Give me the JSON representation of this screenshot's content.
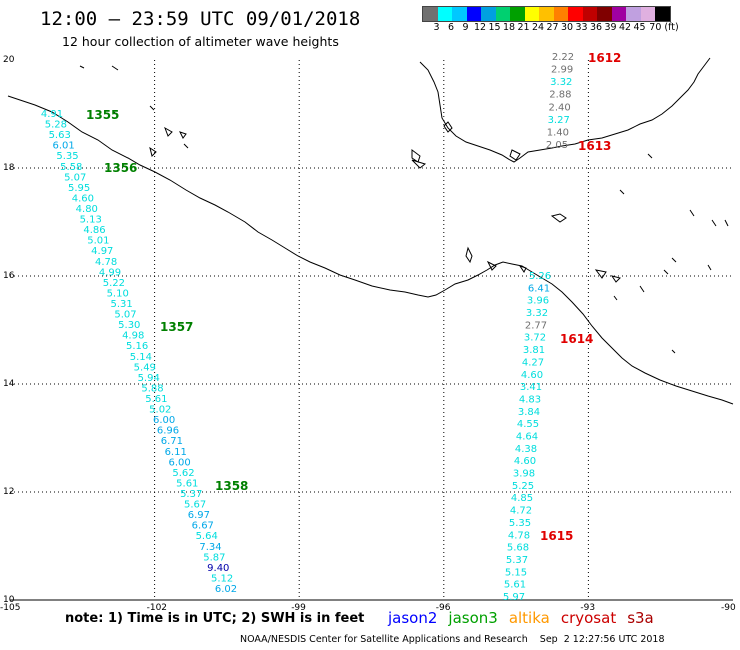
{
  "title": "12:00 – 23:59 UTC 09/01/2018",
  "subtitle": "12 hour collection of altimeter wave heights",
  "colorbar": {
    "colors": [
      "#707070",
      "#00ffff",
      "#00c8ff",
      "#0000ff",
      "#00a0e0",
      "#00d070",
      "#00a000",
      "#ffff00",
      "#ffc000",
      "#ff8000",
      "#ff0000",
      "#c00000",
      "#800000",
      "#a000a0",
      "#c0a0e0",
      "#e0b0e0",
      "#000000"
    ],
    "labels": [
      "3",
      "6",
      "9",
      "12",
      "15",
      "18",
      "21",
      "24",
      "27",
      "30",
      "33",
      "36",
      "39",
      "42",
      "45",
      "70 (ft)"
    ]
  },
  "map": {
    "lat_labels": [
      "20",
      "18",
      "16",
      "14",
      "12",
      "10"
    ],
    "lon_labels": [
      "-105",
      "-102",
      "-99",
      "-96",
      "-93",
      "-90"
    ],
    "tracks": [
      {
        "label": "jason3-west",
        "values": [
          "4.91",
          "5.28",
          "5.63",
          "6.01",
          "5.35",
          "5.58",
          "5.07",
          "5.95",
          "4.60",
          "4.80",
          "5.13",
          "4.86",
          "5.01",
          "4.97",
          "4.78",
          "4.99",
          "5.22",
          "5.10",
          "5.31",
          "5.07",
          "5.30",
          "4.98",
          "5.16",
          "5.14",
          "5.49",
          "5.94",
          "5.88",
          "5.61",
          "5.02",
          "6.00",
          "6.96",
          "6.71",
          "6.11",
          "6.00",
          "5.62",
          "5.61",
          "5.37",
          "5.67",
          "6.97",
          "6.67",
          "5.64",
          "7.34",
          "5.87",
          "9.40",
          "5.12",
          "6.02"
        ]
      },
      {
        "label": "jason3-east",
        "values": [
          "5.26",
          "6.41",
          "3.96",
          "3.32",
          "2.77",
          "3.72",
          "3.81",
          "4.27",
          "4.60",
          "3.41",
          "4.83",
          "3.84",
          "4.55",
          "4.64",
          "4.38",
          "4.60",
          "3.98",
          "5.25",
          "4.85",
          "4.72",
          "5.35",
          "4.78",
          "5.68",
          "5.37",
          "5.15",
          "5.61",
          "5.97"
        ]
      },
      {
        "label": "cryosat-north",
        "values": [
          "2.22",
          "2.99",
          "3.32",
          "2.88",
          "2.40",
          "3.27",
          "1.40",
          "2.05"
        ]
      }
    ],
    "times": [
      {
        "text": "1355",
        "sat": "jason3"
      },
      {
        "text": "1356",
        "sat": "jason3"
      },
      {
        "text": "1357",
        "sat": "jason3"
      },
      {
        "text": "1358",
        "sat": "jason3"
      },
      {
        "text": "1612",
        "sat": "cryosat"
      },
      {
        "text": "1613",
        "sat": "cryosat"
      },
      {
        "text": "1614",
        "sat": "cryosat"
      },
      {
        "text": "1615",
        "sat": "cryosat"
      }
    ]
  },
  "note": "note:  1) Time is in UTC;  2) SWH is in feet",
  "legend": [
    {
      "name": "jason2",
      "color": "#0000ff"
    },
    {
      "name": "jason3",
      "color": "#00a000"
    },
    {
      "name": "altika",
      "color": "#ff9900"
    },
    {
      "name": "cryosat",
      "color": "#cc0000"
    },
    {
      "name": "s3a",
      "color": "#aa0000"
    }
  ],
  "footer": "NOAA/NESDIS Center for Satellite Applications and Research    Sep  2 12:27:56 UTC 2018"
}
